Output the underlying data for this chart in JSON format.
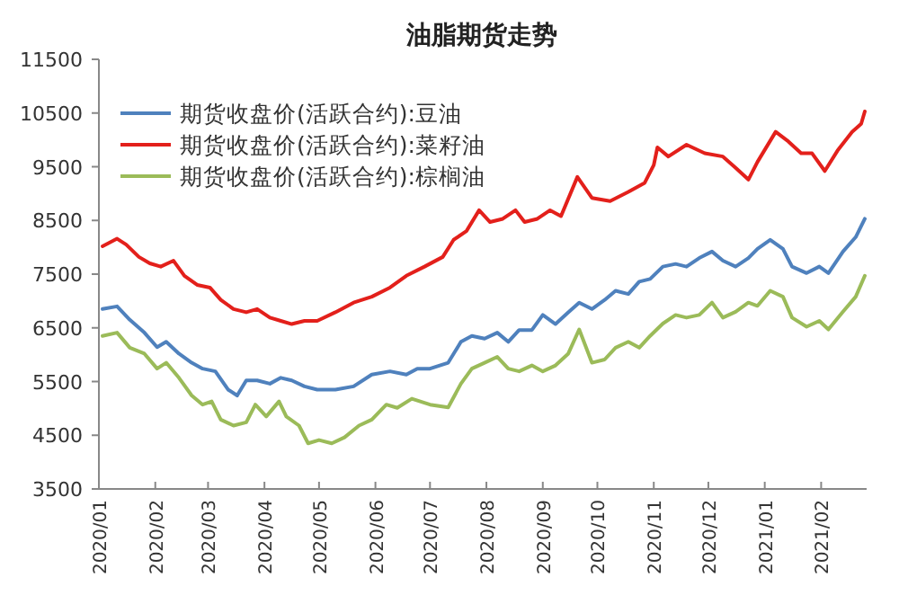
{
  "chart_data": {
    "type": "line",
    "title": "油脂期货走势",
    "xlim": [
      "2020-01-01",
      "2021-02-26"
    ],
    "ylim": [
      3500,
      11500
    ],
    "yticks": [
      3500,
      4500,
      5500,
      6500,
      7500,
      8500,
      9500,
      10500,
      11500
    ],
    "xticks": [
      {
        "value": "2020-01-01",
        "label": "2020/01"
      },
      {
        "value": "2020-02-01",
        "label": "2020/02"
      },
      {
        "value": "2020-03-01",
        "label": "2020/03"
      },
      {
        "value": "2020-04-01",
        "label": "2020/04"
      },
      {
        "value": "2020-05-01",
        "label": "2020/05"
      },
      {
        "value": "2020-06-01",
        "label": "2020/06"
      },
      {
        "value": "2020-07-01",
        "label": "2020/07"
      },
      {
        "value": "2020-08-01",
        "label": "2020/08"
      },
      {
        "value": "2020-09-01",
        "label": "2020/09"
      },
      {
        "value": "2020-10-01",
        "label": "2020/10"
      },
      {
        "value": "2020-11-01",
        "label": "2020/11"
      },
      {
        "value": "2020-12-01",
        "label": "2020/12"
      },
      {
        "value": "2021-01-01",
        "label": "2021/01"
      },
      {
        "value": "2021-02-01",
        "label": "2021/02"
      }
    ],
    "grid": false,
    "legend": "top left",
    "marker": "none",
    "line_style": "solid",
    "series": [
      {
        "name": "期货收盘价(活跃合约):豆油",
        "color": "#4f81bd",
        "x": [
          "2020-01-03",
          "2020-01-11",
          "2020-01-18",
          "2020-01-26",
          "2020-02-02",
          "2020-02-07",
          "2020-02-14",
          "2020-02-21",
          "2020-02-27",
          "2020-03-05",
          "2020-03-12",
          "2020-03-17",
          "2020-03-22",
          "2020-03-28",
          "2020-04-04",
          "2020-04-10",
          "2020-04-16",
          "2020-04-23",
          "2020-04-30",
          "2020-05-10",
          "2020-05-20",
          "2020-05-30",
          "2020-06-09",
          "2020-06-18",
          "2020-06-24",
          "2020-07-01",
          "2020-07-11",
          "2020-07-18",
          "2020-07-24",
          "2020-07-31",
          "2020-08-07",
          "2020-08-13",
          "2020-08-19",
          "2020-08-26",
          "2020-09-01",
          "2020-09-08",
          "2020-09-15",
          "2020-09-21",
          "2020-09-28",
          "2020-10-05",
          "2020-10-11",
          "2020-10-18",
          "2020-10-24",
          "2020-10-30",
          "2020-11-06",
          "2020-11-13",
          "2020-11-19",
          "2020-11-26",
          "2020-12-03",
          "2020-12-09",
          "2020-12-16",
          "2020-12-23",
          "2020-12-28",
          "2021-01-04",
          "2021-01-11",
          "2021-01-16",
          "2021-01-24",
          "2021-01-31",
          "2021-02-05",
          "2021-02-13",
          "2021-02-20",
          "2021-02-25"
        ],
        "values": [
          6850,
          6900,
          6650,
          6410,
          6140,
          6240,
          6020,
          5850,
          5740,
          5690,
          5350,
          5240,
          5520,
          5520,
          5460,
          5570,
          5520,
          5410,
          5350,
          5350,
          5410,
          5630,
          5690,
          5630,
          5740,
          5740,
          5850,
          6240,
          6350,
          6300,
          6410,
          6240,
          6460,
          6460,
          6740,
          6570,
          6790,
          6970,
          6850,
          7020,
          7190,
          7130,
          7360,
          7410,
          7640,
          7690,
          7640,
          7800,
          7920,
          7750,
          7640,
          7800,
          7970,
          8140,
          7970,
          7640,
          7520,
          7640,
          7520,
          7920,
          8190,
          8530
        ]
      },
      {
        "name": "期货收盘价(活跃合约):菜籽油",
        "color": "#e3201b",
        "x": [
          "2020-01-03",
          "2020-01-11",
          "2020-01-16",
          "2020-01-23",
          "2020-01-29",
          "2020-02-04",
          "2020-02-11",
          "2020-02-17",
          "2020-02-24",
          "2020-03-02",
          "2020-03-08",
          "2020-03-15",
          "2020-03-22",
          "2020-03-28",
          "2020-04-04",
          "2020-04-10",
          "2020-04-16",
          "2020-04-23",
          "2020-04-30",
          "2020-05-10",
          "2020-05-20",
          "2020-05-30",
          "2020-06-09",
          "2020-06-18",
          "2020-06-28",
          "2020-07-08",
          "2020-07-14",
          "2020-07-21",
          "2020-07-28",
          "2020-08-03",
          "2020-08-10",
          "2020-08-17",
          "2020-08-22",
          "2020-08-29",
          "2020-09-05",
          "2020-09-11",
          "2020-09-20",
          "2020-09-28",
          "2020-10-08",
          "2020-10-18",
          "2020-10-27",
          "2020-11-01",
          "2020-11-03",
          "2020-11-09",
          "2020-11-19",
          "2020-11-29",
          "2020-12-09",
          "2020-12-16",
          "2020-12-23",
          "2020-12-28",
          "2021-01-07",
          "2021-01-14",
          "2021-01-21",
          "2021-01-27",
          "2021-02-03",
          "2021-02-10",
          "2021-02-18",
          "2021-02-23",
          "2021-02-25"
        ],
        "values": [
          8020,
          8160,
          8050,
          7820,
          7700,
          7640,
          7750,
          7470,
          7300,
          7250,
          7020,
          6850,
          6790,
          6850,
          6690,
          6630,
          6570,
          6630,
          6630,
          6790,
          6970,
          7080,
          7250,
          7470,
          7640,
          7820,
          8140,
          8300,
          8690,
          8470,
          8530,
          8690,
          8470,
          8530,
          8690,
          8580,
          9310,
          8920,
          8860,
          9030,
          9200,
          9530,
          9860,
          9690,
          9910,
          9750,
          9690,
          9480,
          9260,
          9590,
          10150,
          9970,
          9750,
          9750,
          9420,
          9800,
          10150,
          10300,
          10530
        ]
      },
      {
        "name": "期货收盘价(活跃合约):棕榈油",
        "color": "#9bbb59",
        "x": [
          "2020-01-03",
          "2020-01-11",
          "2020-01-18",
          "2020-01-26",
          "2020-02-02",
          "2020-02-07",
          "2020-02-14",
          "2020-02-21",
          "2020-02-27",
          "2020-03-03",
          "2020-03-08",
          "2020-03-15",
          "2020-03-22",
          "2020-03-27",
          "2020-04-02",
          "2020-04-09",
          "2020-04-13",
          "2020-04-20",
          "2020-04-25",
          "2020-05-01",
          "2020-05-08",
          "2020-05-15",
          "2020-05-23",
          "2020-05-30",
          "2020-06-07",
          "2020-06-13",
          "2020-06-21",
          "2020-07-01",
          "2020-07-11",
          "2020-07-18",
          "2020-07-24",
          "2020-07-31",
          "2020-08-07",
          "2020-08-13",
          "2020-08-19",
          "2020-08-26",
          "2020-09-01",
          "2020-09-08",
          "2020-09-15",
          "2020-09-21",
          "2020-09-28",
          "2020-10-05",
          "2020-10-11",
          "2020-10-18",
          "2020-10-24",
          "2020-10-30",
          "2020-11-06",
          "2020-11-13",
          "2020-11-19",
          "2020-11-26",
          "2020-12-03",
          "2020-12-09",
          "2020-12-16",
          "2020-12-23",
          "2020-12-28",
          "2021-01-04",
          "2021-01-11",
          "2021-01-16",
          "2021-01-24",
          "2021-01-31",
          "2021-02-05",
          "2021-02-13",
          "2021-02-20",
          "2021-02-25"
        ],
        "values": [
          6350,
          6410,
          6130,
          6020,
          5740,
          5850,
          5570,
          5240,
          5070,
          5130,
          4790,
          4680,
          4740,
          5070,
          4850,
          5130,
          4850,
          4680,
          4350,
          4410,
          4350,
          4460,
          4680,
          4790,
          5070,
          5010,
          5180,
          5070,
          5020,
          5460,
          5740,
          5850,
          5960,
          5740,
          5690,
          5800,
          5690,
          5800,
          6020,
          6470,
          5850,
          5910,
          6130,
          6240,
          6130,
          6350,
          6580,
          6740,
          6690,
          6740,
          6970,
          6690,
          6800,
          6970,
          6910,
          7190,
          7080,
          6690,
          6520,
          6630,
          6470,
          6800,
          7080,
          7470
        ]
      }
    ]
  }
}
